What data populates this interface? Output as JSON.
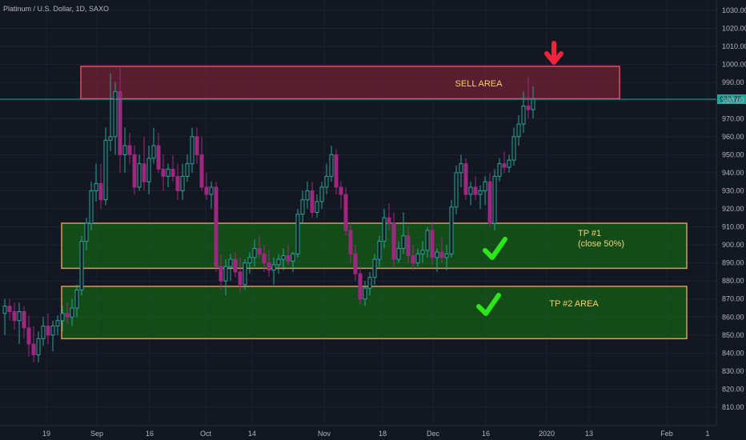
{
  "symbol": "Platinum / U.S. Dollar, 1D, SAXO",
  "current_price": "980.75",
  "chart_data": {
    "type": "candlestick",
    "title": "Platinum / U.S. Dollar, 1D, SAXO",
    "ylim": [
      800,
      1035
    ],
    "y_ticks": [
      "1030.00",
      "1020.00",
      "1010.00",
      "1000.00",
      "990.00",
      "980.00",
      "970.00",
      "960.00",
      "950.00",
      "940.00",
      "930.00",
      "920.00",
      "910.00",
      "900.00",
      "890.00",
      "880.00",
      "870.00",
      "860.00",
      "850.00",
      "840.00",
      "830.00",
      "820.00",
      "810.00"
    ],
    "x_ticks": [
      "19",
      "Sep",
      "16",
      "Oct",
      "14",
      "Nov",
      "18",
      "Dec",
      "16",
      "2020",
      "13",
      "Feb",
      "1"
    ],
    "grid": true,
    "colors": {
      "up": "#26a69a",
      "down": "#a0277f",
      "background": "#131722",
      "grid": "#1e2230",
      "sell_zone": "#e04f63",
      "tp_zone": "#e5954e",
      "check": "#2ee51a",
      "arrow": "#ef233c",
      "price_line": "#26a69a"
    },
    "zones": [
      {
        "label": "SELL AREA",
        "from": 981,
        "to": 999
      },
      {
        "label": "TP #1",
        "sublabel": "(close 50%)",
        "from": 887,
        "to": 912
      },
      {
        "label": "TP #2 AREA",
        "from": 848,
        "to": 877
      }
    ],
    "candles": [
      {
        "o": 862,
        "h": 870,
        "l": 850,
        "c": 866
      },
      {
        "o": 866,
        "h": 870,
        "l": 858,
        "c": 863
      },
      {
        "o": 863,
        "h": 868,
        "l": 853,
        "c": 858
      },
      {
        "o": 858,
        "h": 868,
        "l": 845,
        "c": 863
      },
      {
        "o": 863,
        "h": 866,
        "l": 848,
        "c": 854
      },
      {
        "o": 854,
        "h": 861,
        "l": 838,
        "c": 845
      },
      {
        "o": 845,
        "h": 855,
        "l": 835,
        "c": 839
      },
      {
        "o": 839,
        "h": 852,
        "l": 835,
        "c": 848
      },
      {
        "o": 848,
        "h": 860,
        "l": 844,
        "c": 855
      },
      {
        "o": 855,
        "h": 862,
        "l": 845,
        "c": 850
      },
      {
        "o": 850,
        "h": 858,
        "l": 841,
        "c": 855
      },
      {
        "o": 855,
        "h": 861,
        "l": 850,
        "c": 858
      },
      {
        "o": 858,
        "h": 866,
        "l": 852,
        "c": 862
      },
      {
        "o": 862,
        "h": 868,
        "l": 856,
        "c": 860
      },
      {
        "o": 860,
        "h": 870,
        "l": 855,
        "c": 865
      },
      {
        "o": 865,
        "h": 878,
        "l": 860,
        "c": 875
      },
      {
        "o": 875,
        "h": 905,
        "l": 872,
        "c": 902
      },
      {
        "o": 902,
        "h": 915,
        "l": 897,
        "c": 912
      },
      {
        "o": 912,
        "h": 935,
        "l": 908,
        "c": 930
      },
      {
        "o": 930,
        "h": 945,
        "l": 924,
        "c": 934
      },
      {
        "o": 934,
        "h": 945,
        "l": 920,
        "c": 925
      },
      {
        "o": 925,
        "h": 965,
        "l": 922,
        "c": 958
      },
      {
        "o": 958,
        "h": 995,
        "l": 952,
        "c": 960
      },
      {
        "o": 960,
        "h": 990,
        "l": 950,
        "c": 985
      },
      {
        "o": 985,
        "h": 998,
        "l": 940,
        "c": 950
      },
      {
        "o": 950,
        "h": 965,
        "l": 940,
        "c": 955
      },
      {
        "o": 955,
        "h": 962,
        "l": 945,
        "c": 950
      },
      {
        "o": 950,
        "h": 955,
        "l": 928,
        "c": 932
      },
      {
        "o": 932,
        "h": 950,
        "l": 930,
        "c": 945
      },
      {
        "o": 945,
        "h": 960,
        "l": 930,
        "c": 935
      },
      {
        "o": 935,
        "h": 955,
        "l": 928,
        "c": 948
      },
      {
        "o": 948,
        "h": 965,
        "l": 945,
        "c": 955
      },
      {
        "o": 955,
        "h": 962,
        "l": 940,
        "c": 942
      },
      {
        "o": 942,
        "h": 950,
        "l": 930,
        "c": 938
      },
      {
        "o": 938,
        "h": 945,
        "l": 932,
        "c": 942
      },
      {
        "o": 942,
        "h": 950,
        "l": 935,
        "c": 938
      },
      {
        "o": 938,
        "h": 945,
        "l": 925,
        "c": 930
      },
      {
        "o": 930,
        "h": 945,
        "l": 925,
        "c": 938
      },
      {
        "o": 938,
        "h": 950,
        "l": 935,
        "c": 945
      },
      {
        "o": 945,
        "h": 965,
        "l": 940,
        "c": 960
      },
      {
        "o": 960,
        "h": 965,
        "l": 945,
        "c": 950
      },
      {
        "o": 950,
        "h": 960,
        "l": 930,
        "c": 932
      },
      {
        "o": 932,
        "h": 940,
        "l": 925,
        "c": 928
      },
      {
        "o": 928,
        "h": 935,
        "l": 920,
        "c": 932
      },
      {
        "o": 932,
        "h": 935,
        "l": 885,
        "c": 888
      },
      {
        "o": 888,
        "h": 895,
        "l": 875,
        "c": 880
      },
      {
        "o": 880,
        "h": 892,
        "l": 872,
        "c": 888
      },
      {
        "o": 888,
        "h": 895,
        "l": 880,
        "c": 892
      },
      {
        "o": 892,
        "h": 896,
        "l": 882,
        "c": 885
      },
      {
        "o": 885,
        "h": 893,
        "l": 874,
        "c": 878
      },
      {
        "o": 878,
        "h": 892,
        "l": 875,
        "c": 890
      },
      {
        "o": 890,
        "h": 896,
        "l": 884,
        "c": 893
      },
      {
        "o": 893,
        "h": 903,
        "l": 888,
        "c": 898
      },
      {
        "o": 898,
        "h": 905,
        "l": 893,
        "c": 895
      },
      {
        "o": 895,
        "h": 900,
        "l": 885,
        "c": 890
      },
      {
        "o": 890,
        "h": 897,
        "l": 882,
        "c": 886
      },
      {
        "o": 886,
        "h": 893,
        "l": 878,
        "c": 889
      },
      {
        "o": 889,
        "h": 895,
        "l": 884,
        "c": 892
      },
      {
        "o": 892,
        "h": 898,
        "l": 886,
        "c": 894
      },
      {
        "o": 894,
        "h": 900,
        "l": 889,
        "c": 891
      },
      {
        "o": 891,
        "h": 896,
        "l": 885,
        "c": 895
      },
      {
        "o": 895,
        "h": 920,
        "l": 893,
        "c": 917
      },
      {
        "o": 917,
        "h": 930,
        "l": 912,
        "c": 925
      },
      {
        "o": 925,
        "h": 935,
        "l": 920,
        "c": 930
      },
      {
        "o": 930,
        "h": 935,
        "l": 915,
        "c": 918
      },
      {
        "o": 918,
        "h": 928,
        "l": 915,
        "c": 924
      },
      {
        "o": 924,
        "h": 935,
        "l": 920,
        "c": 932
      },
      {
        "o": 932,
        "h": 945,
        "l": 928,
        "c": 938
      },
      {
        "o": 938,
        "h": 955,
        "l": 935,
        "c": 950
      },
      {
        "o": 950,
        "h": 953,
        "l": 928,
        "c": 932
      },
      {
        "o": 932,
        "h": 935,
        "l": 920,
        "c": 928
      },
      {
        "o": 928,
        "h": 932,
        "l": 905,
        "c": 908
      },
      {
        "o": 908,
        "h": 912,
        "l": 890,
        "c": 895
      },
      {
        "o": 895,
        "h": 900,
        "l": 880,
        "c": 884
      },
      {
        "o": 884,
        "h": 888,
        "l": 867,
        "c": 870
      },
      {
        "o": 870,
        "h": 880,
        "l": 866,
        "c": 876
      },
      {
        "o": 876,
        "h": 885,
        "l": 872,
        "c": 882
      },
      {
        "o": 882,
        "h": 895,
        "l": 878,
        "c": 892
      },
      {
        "o": 892,
        "h": 905,
        "l": 888,
        "c": 902
      },
      {
        "o": 902,
        "h": 920,
        "l": 898,
        "c": 915
      },
      {
        "o": 915,
        "h": 923,
        "l": 908,
        "c": 912
      },
      {
        "o": 912,
        "h": 918,
        "l": 888,
        "c": 892
      },
      {
        "o": 892,
        "h": 902,
        "l": 890,
        "c": 898
      },
      {
        "o": 898,
        "h": 918,
        "l": 895,
        "c": 905
      },
      {
        "o": 905,
        "h": 910,
        "l": 890,
        "c": 894
      },
      {
        "o": 894,
        "h": 900,
        "l": 886,
        "c": 890
      },
      {
        "o": 890,
        "h": 898,
        "l": 888,
        "c": 895
      },
      {
        "o": 895,
        "h": 902,
        "l": 890,
        "c": 897
      },
      {
        "o": 897,
        "h": 910,
        "l": 893,
        "c": 908
      },
      {
        "o": 908,
        "h": 912,
        "l": 889,
        "c": 893
      },
      {
        "o": 893,
        "h": 898,
        "l": 885,
        "c": 896
      },
      {
        "o": 896,
        "h": 904,
        "l": 890,
        "c": 893
      },
      {
        "o": 893,
        "h": 900,
        "l": 886,
        "c": 895
      },
      {
        "o": 895,
        "h": 925,
        "l": 893,
        "c": 921
      },
      {
        "o": 921,
        "h": 944,
        "l": 917,
        "c": 940
      },
      {
        "o": 940,
        "h": 950,
        "l": 932,
        "c": 945
      },
      {
        "o": 945,
        "h": 948,
        "l": 925,
        "c": 928
      },
      {
        "o": 928,
        "h": 935,
        "l": 922,
        "c": 932
      },
      {
        "o": 932,
        "h": 938,
        "l": 925,
        "c": 928
      },
      {
        "o": 928,
        "h": 933,
        "l": 920,
        "c": 930
      },
      {
        "o": 930,
        "h": 938,
        "l": 922,
        "c": 935
      },
      {
        "o": 935,
        "h": 940,
        "l": 910,
        "c": 912
      },
      {
        "o": 912,
        "h": 942,
        "l": 908,
        "c": 938
      },
      {
        "o": 938,
        "h": 948,
        "l": 935,
        "c": 945
      },
      {
        "o": 945,
        "h": 952,
        "l": 940,
        "c": 943
      },
      {
        "o": 943,
        "h": 950,
        "l": 940,
        "c": 947
      },
      {
        "o": 947,
        "h": 965,
        "l": 944,
        "c": 960
      },
      {
        "o": 960,
        "h": 972,
        "l": 955,
        "c": 967
      },
      {
        "o": 967,
        "h": 985,
        "l": 962,
        "c": 977
      },
      {
        "o": 977,
        "h": 993,
        "l": 970,
        "c": 975
      },
      {
        "o": 975,
        "h": 988,
        "l": 970,
        "c": 981
      }
    ]
  }
}
